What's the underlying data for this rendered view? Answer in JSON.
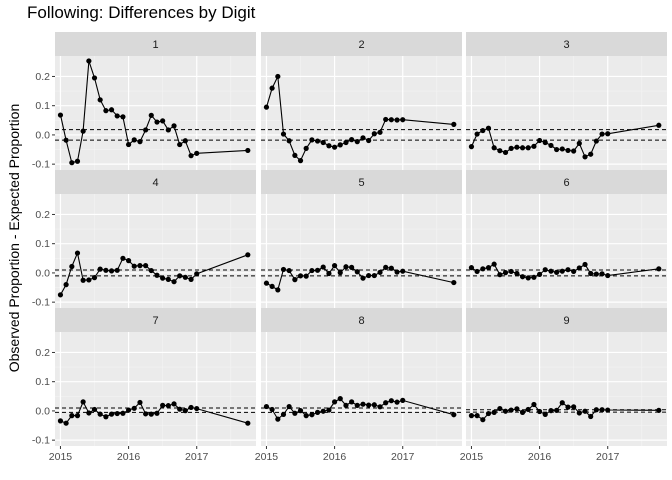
{
  "chart_data": {
    "type": "line",
    "title": "Following: Differences by Digit",
    "ylabel": "Observed Proportion - Expected Proportion",
    "xlabel": "",
    "x_ticks": [
      "2015",
      "2016",
      "2017"
    ],
    "y_ticks": [
      "-0.1",
      "0.0",
      "0.1",
      "0.2"
    ],
    "ylim": [
      -0.12,
      0.27
    ],
    "xlim": [
      2014.92,
      2017.87
    ],
    "layout": "3x3 facet grid",
    "grid": true,
    "reference_lines": "dashed",
    "panels": [
      {
        "facet": "1",
        "ref_band": [
          -0.018,
          0.018
        ],
        "x": [
          2015.0,
          2015.083,
          2015.167,
          2015.25,
          2015.333,
          2015.417,
          2015.5,
          2015.583,
          2015.667,
          2015.75,
          2015.833,
          2015.917,
          2016.0,
          2016.083,
          2016.167,
          2016.25,
          2016.333,
          2016.417,
          2016.5,
          2016.583,
          2016.667,
          2016.75,
          2016.833,
          2016.917,
          2017.0,
          2017.75
        ],
        "y": [
          0.068,
          -0.018,
          -0.095,
          -0.09,
          0.013,
          0.253,
          0.195,
          0.12,
          0.083,
          0.086,
          0.065,
          0.062,
          -0.033,
          -0.017,
          -0.023,
          0.017,
          0.067,
          0.044,
          0.048,
          0.017,
          0.031,
          -0.033,
          -0.02,
          -0.071,
          -0.063,
          -0.053
        ]
      },
      {
        "facet": "2",
        "ref_band": [
          -0.018,
          0.018
        ],
        "x": [
          2015.0,
          2015.083,
          2015.167,
          2015.25,
          2015.333,
          2015.417,
          2015.5,
          2015.583,
          2015.667,
          2015.75,
          2015.833,
          2015.917,
          2016.0,
          2016.083,
          2016.167,
          2016.25,
          2016.333,
          2016.417,
          2016.5,
          2016.583,
          2016.667,
          2016.75,
          2016.833,
          2016.917,
          2017.0,
          2017.75
        ],
        "y": [
          0.095,
          0.16,
          0.2,
          0.003,
          -0.02,
          -0.07,
          -0.088,
          -0.046,
          -0.017,
          -0.021,
          -0.026,
          -0.037,
          -0.042,
          -0.034,
          -0.026,
          -0.016,
          -0.023,
          -0.01,
          -0.019,
          0.004,
          0.009,
          0.053,
          0.052,
          0.051,
          0.052,
          0.036
        ]
      },
      {
        "facet": "3",
        "ref_band": [
          -0.018,
          0.018
        ],
        "x": [
          2015.0,
          2015.083,
          2015.167,
          2015.25,
          2015.333,
          2015.417,
          2015.5,
          2015.583,
          2015.667,
          2015.75,
          2015.833,
          2015.917,
          2016.0,
          2016.083,
          2016.167,
          2016.25,
          2016.333,
          2016.417,
          2016.5,
          2016.583,
          2016.667,
          2016.75,
          2016.833,
          2016.917,
          2017.0,
          2017.75
        ],
        "y": [
          -0.04,
          0.003,
          0.015,
          0.023,
          -0.044,
          -0.054,
          -0.06,
          -0.046,
          -0.042,
          -0.044,
          -0.044,
          -0.039,
          -0.019,
          -0.026,
          -0.036,
          -0.05,
          -0.048,
          -0.053,
          -0.055,
          -0.029,
          -0.075,
          -0.066,
          -0.021,
          0.003,
          0.004,
          0.033
        ]
      },
      {
        "facet": "4",
        "ref_band": [
          -0.01,
          0.01
        ],
        "x": [
          2015.0,
          2015.083,
          2015.167,
          2015.25,
          2015.333,
          2015.417,
          2015.5,
          2015.583,
          2015.667,
          2015.75,
          2015.833,
          2015.917,
          2016.0,
          2016.083,
          2016.167,
          2016.25,
          2016.333,
          2016.417,
          2016.5,
          2016.583,
          2016.667,
          2016.75,
          2016.833,
          2016.917,
          2017.0,
          2017.75
        ],
        "y": [
          -0.075,
          -0.04,
          0.022,
          0.068,
          -0.025,
          -0.024,
          -0.016,
          0.013,
          0.009,
          0.007,
          0.009,
          0.05,
          0.042,
          0.023,
          0.025,
          0.025,
          0.008,
          -0.008,
          -0.018,
          -0.022,
          -0.03,
          -0.01,
          -0.015,
          -0.022,
          -0.003,
          0.062
        ]
      },
      {
        "facet": "5",
        "ref_band": [
          -0.01,
          0.01
        ],
        "x": [
          2015.0,
          2015.083,
          2015.167,
          2015.25,
          2015.333,
          2015.417,
          2015.5,
          2015.583,
          2015.667,
          2015.75,
          2015.833,
          2015.917,
          2016.0,
          2016.083,
          2016.167,
          2016.25,
          2016.333,
          2016.417,
          2016.5,
          2016.583,
          2016.667,
          2016.75,
          2016.833,
          2016.917,
          2017.0,
          2017.75
        ],
        "y": [
          -0.035,
          -0.046,
          -0.058,
          0.012,
          0.008,
          -0.023,
          -0.01,
          -0.011,
          0.008,
          0.009,
          0.02,
          -0.002,
          0.025,
          0.001,
          0.021,
          0.019,
          0.004,
          -0.018,
          -0.009,
          -0.009,
          0.002,
          0.019,
          0.016,
          0.003,
          0.006,
          -0.033
        ]
      },
      {
        "facet": "6",
        "ref_band": [
          -0.01,
          0.01
        ],
        "x": [
          2015.0,
          2015.083,
          2015.167,
          2015.25,
          2015.333,
          2015.417,
          2015.5,
          2015.583,
          2015.667,
          2015.75,
          2015.833,
          2015.917,
          2016.0,
          2016.083,
          2016.167,
          2016.25,
          2016.333,
          2016.417,
          2016.5,
          2016.583,
          2016.667,
          2016.75,
          2016.833,
          2016.917,
          2017.0,
          2017.75
        ],
        "y": [
          0.018,
          0.005,
          0.014,
          0.018,
          0.03,
          -0.006,
          0.001,
          0.005,
          -0.002,
          -0.013,
          -0.017,
          -0.015,
          -0.005,
          0.011,
          0.006,
          0.002,
          0.006,
          0.011,
          0.005,
          0.017,
          0.029,
          -0.002,
          -0.004,
          -0.003,
          -0.009,
          0.014
        ]
      },
      {
        "facet": "7",
        "ref_band": [
          -0.005,
          0.01
        ],
        "x": [
          2015.0,
          2015.083,
          2015.167,
          2015.25,
          2015.333,
          2015.417,
          2015.5,
          2015.583,
          2015.667,
          2015.75,
          2015.833,
          2015.917,
          2016.0,
          2016.083,
          2016.167,
          2016.25,
          2016.333,
          2016.417,
          2016.5,
          2016.583,
          2016.667,
          2016.75,
          2016.833,
          2016.917,
          2017.0,
          2017.75
        ],
        "y": [
          -0.034,
          -0.042,
          -0.016,
          -0.016,
          0.031,
          -0.007,
          0.005,
          -0.011,
          -0.02,
          -0.011,
          -0.009,
          -0.008,
          0.003,
          0.009,
          0.029,
          -0.01,
          -0.011,
          -0.008,
          0.019,
          0.018,
          0.024,
          0.006,
          0.001,
          0.012,
          0.008,
          -0.042
        ]
      },
      {
        "facet": "8",
        "ref_band": [
          -0.005,
          0.01
        ],
        "x": [
          2015.0,
          2015.083,
          2015.167,
          2015.25,
          2015.333,
          2015.417,
          2015.5,
          2015.583,
          2015.667,
          2015.75,
          2015.833,
          2015.917,
          2016.0,
          2016.083,
          2016.167,
          2016.25,
          2016.333,
          2016.417,
          2016.5,
          2016.583,
          2016.667,
          2016.75,
          2016.833,
          2016.917,
          2017.0,
          2017.75
        ],
        "y": [
          0.015,
          0.005,
          -0.028,
          -0.012,
          0.015,
          -0.008,
          0.001,
          -0.016,
          -0.013,
          -0.005,
          -0.001,
          0.003,
          0.031,
          0.042,
          0.019,
          0.031,
          0.019,
          0.023,
          0.02,
          0.021,
          0.014,
          0.028,
          0.035,
          0.03,
          0.036,
          -0.013
        ]
      },
      {
        "facet": "9",
        "ref_band": [
          -0.004,
          0.004
        ],
        "x": [
          2015.0,
          2015.083,
          2015.167,
          2015.25,
          2015.333,
          2015.417,
          2015.5,
          2015.583,
          2015.667,
          2015.75,
          2015.833,
          2015.917,
          2016.0,
          2016.083,
          2016.167,
          2016.25,
          2016.333,
          2016.417,
          2016.5,
          2016.583,
          2016.667,
          2016.75,
          2016.833,
          2016.917,
          2017.0,
          2017.75
        ],
        "y": [
          -0.016,
          -0.016,
          -0.03,
          -0.009,
          -0.005,
          0.008,
          -0.001,
          0.003,
          0.007,
          -0.005,
          0.005,
          0.022,
          -0.002,
          -0.012,
          0.001,
          0.002,
          0.028,
          0.013,
          0.014,
          -0.007,
          -0.001,
          -0.019,
          0.004,
          0.004,
          0.003,
          0.002
        ]
      }
    ]
  }
}
